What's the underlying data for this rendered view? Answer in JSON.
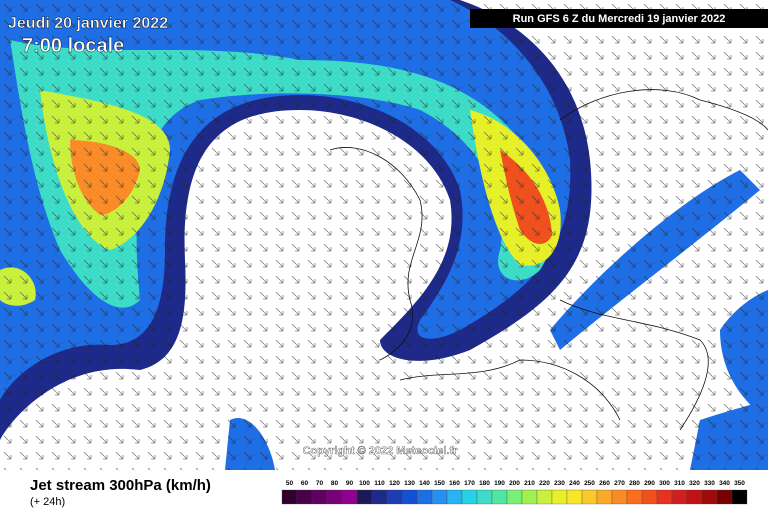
{
  "header": {
    "date": "Jeudi 20 janvier 2022",
    "time": "7:00 locale",
    "run": "Run GFS 6 Z du Mercredi 19 janvier 2022"
  },
  "copyright": "Copyright © 2022 Meteociel.fr",
  "footer": {
    "title": "Jet stream 300hPa (km/h)",
    "lead": "(+ 24h)"
  },
  "legend": {
    "ticks": [
      50,
      60,
      70,
      80,
      90,
      100,
      110,
      120,
      130,
      140,
      150,
      160,
      170,
      180,
      190,
      200,
      210,
      220,
      230,
      240,
      250,
      260,
      270,
      280,
      290,
      300,
      310,
      320,
      330,
      340,
      350
    ],
    "colors": [
      "#300030",
      "#480048",
      "#600060",
      "#780078",
      "#900090",
      "#1a1a5a",
      "#1e2a8a",
      "#1e3cb4",
      "#1450d2",
      "#1e6ee6",
      "#2890f0",
      "#28b4f0",
      "#28d2e6",
      "#3cdcc8",
      "#50e6a0",
      "#78f078",
      "#a0f050",
      "#c8f03c",
      "#e6f028",
      "#fae628",
      "#fac828",
      "#faaa28",
      "#fa8c28",
      "#fa6e1e",
      "#f0501e",
      "#e6321e",
      "#d21e1e",
      "#be1414",
      "#a00a0a",
      "#780000",
      "#000000"
    ]
  }
}
